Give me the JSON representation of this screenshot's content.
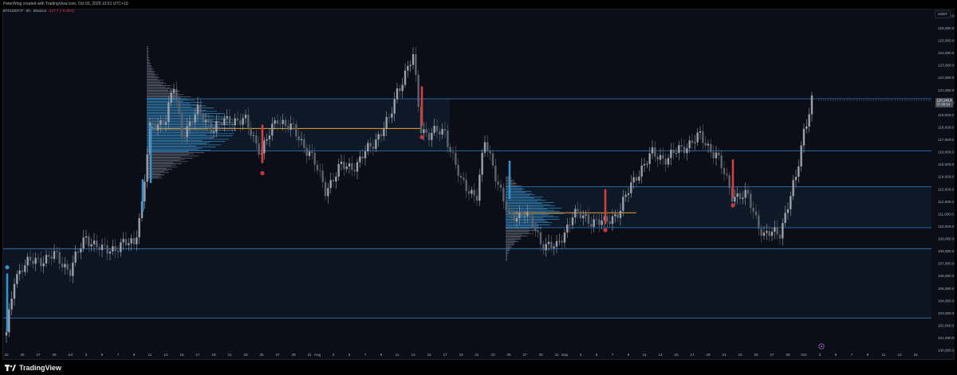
{
  "header": {
    "attribution": "PeterWing created with TradingView.com, Oct 03, 2025 10:51 UTC+10"
  },
  "symbol": {
    "title": "BTCUSDT.P · 8h · Binance",
    "change": "−127.7 (−0.28%)"
  },
  "currency": "USDT",
  "footer": {
    "brand": "TradingView"
  },
  "colors": {
    "background": "#0b0e17",
    "level_line": "#2f6fb3",
    "volume_profile": "#3a8fc7",
    "poc": "#f0a030",
    "bear_candle": "#d0403c",
    "candle": "#8a8f99",
    "marker_red": "#c43a3a",
    "marker_blue": "#3a8fc7",
    "event_icon": "#9b59b6"
  },
  "price_axis": {
    "current_price_label": "120,143.4",
    "countdown_label": "07:08:54"
  },
  "chart_data": {
    "type": "candlestick",
    "title": "BTCUSDT.P · 8h · Binance",
    "ylim": [
      100000,
      127500
    ],
    "y_ticks": [
      "127,000.0",
      "126,000.0",
      "125,000.0",
      "124,000.0",
      "123,000.0",
      "122,000.0",
      "121,000.0",
      "120,000.0",
      "119,000.0",
      "118,000.0",
      "117,000.0",
      "116,000.0",
      "115,000.0",
      "114,000.0",
      "113,000.0",
      "112,000.0",
      "111,000.0",
      "110,000.0",
      "109,000.0",
      "108,000.0",
      "107,000.0",
      "106,000.0",
      "105,000.0",
      "104,000.0",
      "103,000.0",
      "102,000.0",
      "101,000.0",
      "100,000.0"
    ],
    "x_ticks": [
      "23",
      "25",
      "27",
      "29",
      "Jul",
      "3",
      "5",
      "7",
      "9",
      "11",
      "13",
      "15",
      "17",
      "19",
      "21",
      "23",
      "25",
      "27",
      "29",
      "31",
      "Aug",
      "3",
      "5",
      "7",
      "9",
      "11",
      "13",
      "15",
      "17",
      "19",
      "21",
      "23",
      "25",
      "27",
      "29",
      "31",
      "Sep",
      "3",
      "5",
      "7",
      "9",
      "11",
      "13",
      "15",
      "17",
      "19",
      "21",
      "23",
      "25",
      "27",
      "29",
      "Oct",
      "3",
      "5",
      "7",
      "9",
      "11",
      "13",
      "15",
      "17"
    ],
    "horizontal_levels": [
      120300,
      116100,
      113200,
      109900,
      108200,
      102600
    ],
    "poc_levels": [
      {
        "price": 117900,
        "from": "Jul 11",
        "to": "Aug 14"
      },
      {
        "price": 111100,
        "from": "Aug 25",
        "to": "Sep 10"
      }
    ],
    "price_path": [
      {
        "date": "Jun 23",
        "price": 101200
      },
      {
        "date": "Jun 24",
        "price": 105800
      },
      {
        "date": "Jun 25",
        "price": 106800
      },
      {
        "date": "Jun 27",
        "price": 107300
      },
      {
        "date": "Jun 29",
        "price": 107600
      },
      {
        "date": "Jul 1",
        "price": 106500
      },
      {
        "date": "Jul 3",
        "price": 109200
      },
      {
        "date": "Jul 5",
        "price": 108000
      },
      {
        "date": "Jul 7",
        "price": 108400
      },
      {
        "date": "Jul 9",
        "price": 108700
      },
      {
        "date": "Jul 10",
        "price": 111800
      },
      {
        "date": "Jul 11",
        "price": 117800
      },
      {
        "date": "Jul 13",
        "price": 118800
      },
      {
        "date": "Jul 14",
        "price": 121200
      },
      {
        "date": "Jul 15",
        "price": 117500
      },
      {
        "date": "Jul 17",
        "price": 119200
      },
      {
        "date": "Jul 19",
        "price": 117900
      },
      {
        "date": "Jul 21",
        "price": 118700
      },
      {
        "date": "Jul 23",
        "price": 118400
      },
      {
        "date": "Jul 25",
        "price": 116000
      },
      {
        "date": "Jul 27",
        "price": 118800
      },
      {
        "date": "Jul 29",
        "price": 117700
      },
      {
        "date": "Jul 31",
        "price": 116000
      },
      {
        "date": "Aug 2",
        "price": 113000
      },
      {
        "date": "Aug 4",
        "price": 114800
      },
      {
        "date": "Aug 6",
        "price": 115000
      },
      {
        "date": "Aug 8",
        "price": 116800
      },
      {
        "date": "Aug 10",
        "price": 118500
      },
      {
        "date": "Aug 11",
        "price": 121000
      },
      {
        "date": "Aug 13",
        "price": 123600
      },
      {
        "date": "Aug 14",
        "price": 118000
      },
      {
        "date": "Aug 15",
        "price": 117400
      },
      {
        "date": "Aug 17",
        "price": 117700
      },
      {
        "date": "Aug 19",
        "price": 113500
      },
      {
        "date": "Aug 21",
        "price": 112500
      },
      {
        "date": "Aug 22",
        "price": 116800
      },
      {
        "date": "Aug 23",
        "price": 115000
      },
      {
        "date": "Aug 25",
        "price": 110600
      },
      {
        "date": "Aug 27",
        "price": 111200
      },
      {
        "date": "Aug 29",
        "price": 108800
      },
      {
        "date": "Aug 31",
        "price": 108200
      },
      {
        "date": "Sep 2",
        "price": 111000
      },
      {
        "date": "Sep 4",
        "price": 110600
      },
      {
        "date": "Sep 6",
        "price": 110200
      },
      {
        "date": "Sep 8",
        "price": 111400
      },
      {
        "date": "Sep 10",
        "price": 114200
      },
      {
        "date": "Sep 12",
        "price": 115800
      },
      {
        "date": "Sep 14",
        "price": 115500
      },
      {
        "date": "Sep 16",
        "price": 116500
      },
      {
        "date": "Sep 18",
        "price": 117200
      },
      {
        "date": "Sep 20",
        "price": 115800
      },
      {
        "date": "Sep 22",
        "price": 112600
      },
      {
        "date": "Sep 24",
        "price": 112300
      },
      {
        "date": "Sep 26",
        "price": 109200
      },
      {
        "date": "Sep 28",
        "price": 109600
      },
      {
        "date": "Sep 30",
        "price": 113800
      },
      {
        "date": "Oct 1",
        "price": 117800
      },
      {
        "date": "Oct 2",
        "price": 120200
      }
    ],
    "markers": [
      {
        "date": "Jun 23",
        "price": 106700,
        "color": "blue"
      },
      {
        "date": "Jul 11",
        "price": 118000,
        "color": "blue"
      },
      {
        "date": "Jul 25",
        "price": 114300,
        "color": "red"
      },
      {
        "date": "Aug 14",
        "price": 117200,
        "color": "red"
      },
      {
        "date": "Sep 6",
        "price": 109700,
        "color": "red"
      },
      {
        "date": "Sep 22",
        "price": 111700,
        "color": "red"
      }
    ]
  }
}
